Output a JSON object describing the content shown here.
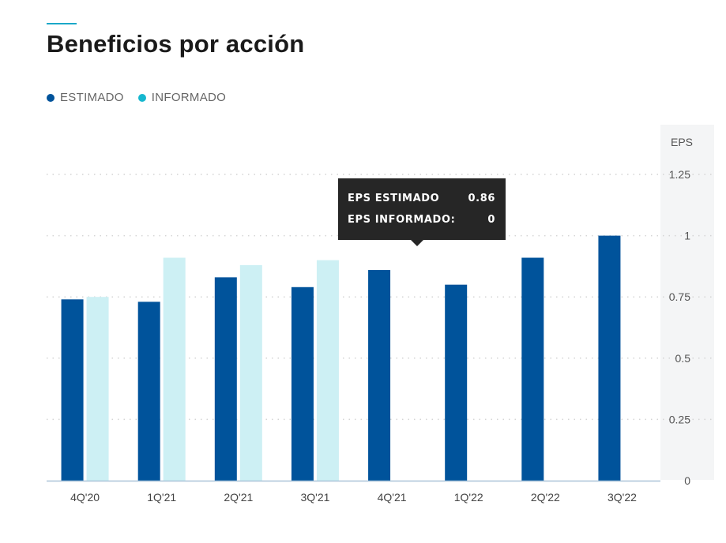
{
  "header": {
    "title": "Beneficios por acción"
  },
  "legend": [
    {
      "label": "ESTIMADO",
      "color": "#00539b"
    },
    {
      "label": "INFORMADO",
      "color": "#16b7cf"
    }
  ],
  "tooltip": {
    "rows": [
      {
        "label": "EPS ESTIMADO",
        "value": "0.86"
      },
      {
        "label": "EPS INFORMADO:",
        "value": "0"
      }
    ]
  },
  "chart_data": {
    "type": "bar",
    "title": "Beneficios por acción",
    "ylabel": "EPS",
    "ylim": [
      0,
      1.25
    ],
    "yticks": [
      "0",
      "0.25",
      "0.5",
      "0.75",
      "1",
      "1.25"
    ],
    "categories": [
      "4Q'20",
      "1Q'21",
      "2Q'21",
      "3Q'21",
      "4Q'21",
      "1Q'22",
      "2Q'22",
      "3Q'22"
    ],
    "series": [
      {
        "name": "ESTIMADO",
        "color": "#00539b",
        "values": [
          0.74,
          0.73,
          0.83,
          0.79,
          0.86,
          0.8,
          0.91,
          1.0
        ]
      },
      {
        "name": "INFORMADO",
        "color": "#cdf0f4",
        "values": [
          0.75,
          0.91,
          0.88,
          0.9,
          null,
          null,
          null,
          null
        ]
      }
    ],
    "grid": true,
    "legend_position": "top-left"
  }
}
